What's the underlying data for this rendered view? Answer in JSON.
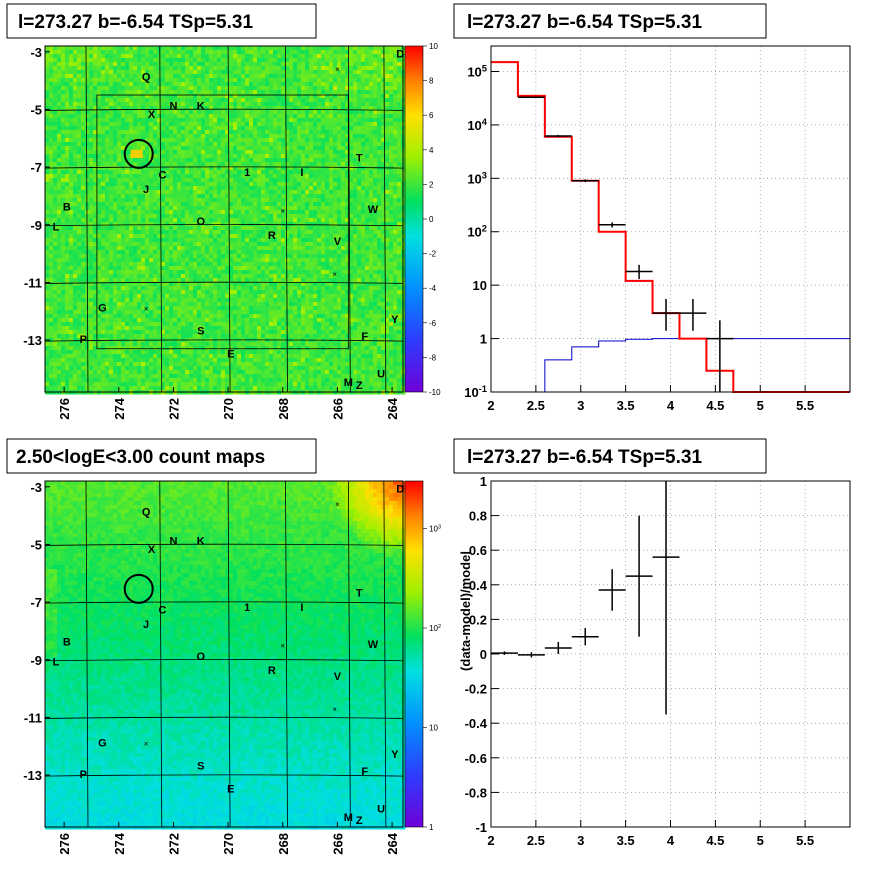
{
  "panels": {
    "top_left_title": "l=273.27 b=-6.54 TSp=5.31",
    "top_right_title": "l=273.27 b=-6.54 TSp=5.31",
    "bottom_left_title": "2.50<logE<3.00 count maps",
    "bottom_right_title": "l=273.27 b=-6.54 TSp=5.31"
  },
  "chart_data": [
    {
      "type": "heatmap",
      "title": "l=273.27 b=-6.54 TSp=5.31",
      "x_ticks": [
        "276",
        "274",
        "272",
        "270",
        "268",
        "266",
        "264"
      ],
      "y_ticks": [
        "-3",
        "-5",
        "-7",
        "-9",
        "-11",
        "-13"
      ],
      "xlim": [
        276.7,
        263.6
      ],
      "ylim": [
        -14.8,
        -2.8
      ],
      "colorbar": {
        "ticks": [
          "10",
          "8",
          "6",
          "4",
          "2",
          "0",
          "-2",
          "-4",
          "-6",
          "-8",
          "-10"
        ],
        "range": [
          -10,
          10
        ]
      },
      "circle": {
        "l": 273.27,
        "b": -6.54
      },
      "sources": [
        {
          "label": "Q",
          "l": 273.0,
          "b": -4.0
        },
        {
          "label": "X",
          "l": 272.8,
          "b": -5.3
        },
        {
          "label": "N",
          "l": 272.0,
          "b": -5.0
        },
        {
          "label": "K",
          "l": 271.0,
          "b": -5.0
        },
        {
          "label": "T",
          "l": 265.2,
          "b": -6.8
        },
        {
          "label": "C",
          "l": 272.4,
          "b": -7.4
        },
        {
          "label": "1",
          "l": 269.3,
          "b": -7.3
        },
        {
          "label": "I",
          "l": 267.3,
          "b": -7.3
        },
        {
          "label": "J",
          "l": 273.0,
          "b": -7.9
        },
        {
          "label": "B",
          "l": 275.9,
          "b": -8.5
        },
        {
          "label": "W",
          "l": 264.7,
          "b": -8.6
        },
        {
          "label": "L",
          "l": 276.3,
          "b": -9.2
        },
        {
          "label": "O",
          "l": 271.0,
          "b": -9.0
        },
        {
          "label": "R",
          "l": 268.4,
          "b": -9.5
        },
        {
          "label": "V",
          "l": 266.0,
          "b": -9.7
        },
        {
          "label": "G",
          "l": 274.6,
          "b": -12.0
        },
        {
          "label": "Y",
          "l": 263.9,
          "b": -12.4
        },
        {
          "label": "S",
          "l": 271.0,
          "b": -12.8
        },
        {
          "label": "F",
          "l": 265.0,
          "b": -13.0
        },
        {
          "label": "P",
          "l": 275.3,
          "b": -13.1
        },
        {
          "label": "E",
          "l": 269.9,
          "b": -13.6
        },
        {
          "label": "U",
          "l": 264.4,
          "b": -14.3
        },
        {
          "label": "M",
          "l": 265.6,
          "b": -14.6
        },
        {
          "label": "Z",
          "l": 265.2,
          "b": -14.7
        },
        {
          "label": "D",
          "l": 263.7,
          "b": -3.2
        }
      ]
    },
    {
      "type": "line",
      "title": "l=273.27 b=-6.54 TSp=5.31",
      "xlim": [
        2,
        6
      ],
      "ylim": [
        0.1,
        300000
      ],
      "y_scale": "log",
      "x_ticks": [
        "2",
        "2.5",
        "3",
        "3.5",
        "4",
        "4.5",
        "5",
        "5.5"
      ],
      "y_ticks": [
        "10^-1",
        "1",
        "10",
        "10^2",
        "10^3",
        "10^4",
        "10^5"
      ],
      "bin_edges": [
        2.0,
        2.3,
        2.6,
        2.9,
        3.2,
        3.5,
        3.8,
        4.1,
        4.4,
        4.7,
        5.0,
        5.3,
        5.6,
        5.9,
        6.0
      ],
      "series": [
        {
          "values": [
            150000,
            35000,
            6000,
            900,
            100,
            12,
            3,
            1,
            0.25,
            0.1,
            0.1,
            0.1,
            0.1,
            0.1
          ]
        },
        {
          "values": [
            0.1,
            0.1,
            0.4,
            0.7,
            0.9,
            0.97,
            1.0,
            1.0,
            1.0,
            1.0,
            1.0,
            1.0,
            1.0,
            1.0
          ]
        },
        {
          "points": [
            {
              "x": 2.45,
              "y": 33000,
              "xerr": 0.15,
              "ylo": 32000,
              "yhi": 34000
            },
            {
              "x": 2.75,
              "y": 6200,
              "xerr": 0.15,
              "ylo": 5900,
              "yhi": 6500
            },
            {
              "x": 3.05,
              "y": 900,
              "xerr": 0.15,
              "ylo": 850,
              "yhi": 960
            },
            {
              "x": 3.35,
              "y": 135,
              "xerr": 0.15,
              "ylo": 120,
              "yhi": 150
            },
            {
              "x": 3.65,
              "y": 18,
              "xerr": 0.15,
              "ylo": 13,
              "yhi": 24
            },
            {
              "x": 3.95,
              "y": 3,
              "xerr": 0.15,
              "ylo": 1.4,
              "yhi": 5.5
            },
            {
              "x": 4.25,
              "y": 3,
              "xerr": 0.15,
              "ylo": 1.4,
              "yhi": 5.5
            },
            {
              "x": 4.55,
              "y": 1,
              "xerr": 0.15,
              "ylo": 0.1,
              "yhi": 2.2
            }
          ]
        }
      ]
    },
    {
      "type": "heatmap",
      "title": "2.50<logE<3.00 count maps",
      "x_ticks": [
        "276",
        "274",
        "272",
        "270",
        "268",
        "266",
        "264"
      ],
      "y_ticks": [
        "-3",
        "-5",
        "-7",
        "-9",
        "-11",
        "-13"
      ],
      "xlim": [
        276.7,
        263.6
      ],
      "ylim": [
        -14.8,
        -2.8
      ],
      "colorbar": {
        "ticks": [
          "1",
          "10",
          "10^2",
          "10^3"
        ],
        "scale": "log",
        "range": [
          1,
          3000
        ]
      },
      "circle": {
        "l": 273.27,
        "b": -6.54
      }
    },
    {
      "type": "scatter",
      "title": "l=273.27 b=-6.54 TSp=5.31",
      "ylabel": "(data-model)/model",
      "xlim": [
        2,
        6
      ],
      "ylim": [
        -1,
        1
      ],
      "x_ticks": [
        "2",
        "2.5",
        "3",
        "3.5",
        "4",
        "4.5",
        "5",
        "5.5"
      ],
      "y_ticks": [
        "-1",
        "-0.8",
        "-0.6",
        "-0.4",
        "-0.2",
        "0",
        "0.2",
        "0.4",
        "0.6",
        "0.8",
        "1"
      ],
      "points": [
        {
          "x": 2.15,
          "y": 0.005,
          "xerr": 0.15,
          "ylo": -0.005,
          "yhi": 0.015
        },
        {
          "x": 2.45,
          "y": -0.005,
          "xerr": 0.15,
          "ylo": -0.02,
          "yhi": 0.01
        },
        {
          "x": 2.75,
          "y": 0.035,
          "xerr": 0.15,
          "ylo": 0.0,
          "yhi": 0.07
        },
        {
          "x": 3.05,
          "y": 0.1,
          "xerr": 0.15,
          "ylo": 0.05,
          "yhi": 0.15
        },
        {
          "x": 3.35,
          "y": 0.37,
          "xerr": 0.15,
          "ylo": 0.25,
          "yhi": 0.49
        },
        {
          "x": 3.65,
          "y": 0.45,
          "xerr": 0.15,
          "ylo": 0.1,
          "yhi": 0.8
        },
        {
          "x": 3.95,
          "y": 0.56,
          "xerr": 0.15,
          "ylo": -0.35,
          "yhi": 1.0
        }
      ]
    }
  ],
  "colors": {
    "model_line": "#ff0000",
    "source_line": "#0000cc",
    "data_points": "#000000",
    "grid": "#888888"
  }
}
